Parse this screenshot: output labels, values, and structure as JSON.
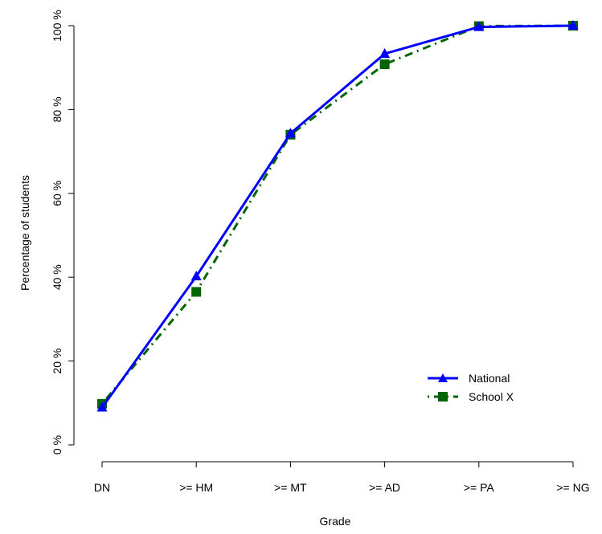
{
  "chart_data": {
    "type": "line",
    "xlabel": "Grade",
    "ylabel": "Percentage of students",
    "categories": [
      "DN",
      ">= HM",
      ">= MT",
      ">= AD",
      ">= PA",
      ">= NG"
    ],
    "yticks": [
      0,
      20,
      40,
      60,
      80,
      100
    ],
    "ytick_labels": [
      "0 %",
      "20 %",
      "40 %",
      "60 %",
      "80 %",
      "100 %"
    ],
    "ylim": [
      0,
      100
    ],
    "grid": false,
    "legend_position": "bottom-right",
    "series": [
      {
        "name": "National",
        "values": [
          8.9,
          40.2,
          74.3,
          93.3,
          99.7,
          100
        ],
        "color": "#0000ff",
        "marker": "triangle",
        "line_style": "solid"
      },
      {
        "name": "School X",
        "values": [
          9.8,
          36.5,
          74.0,
          90.8,
          99.9,
          100
        ],
        "color": "#006400",
        "marker": "square",
        "line_style": "dashdot"
      }
    ]
  }
}
